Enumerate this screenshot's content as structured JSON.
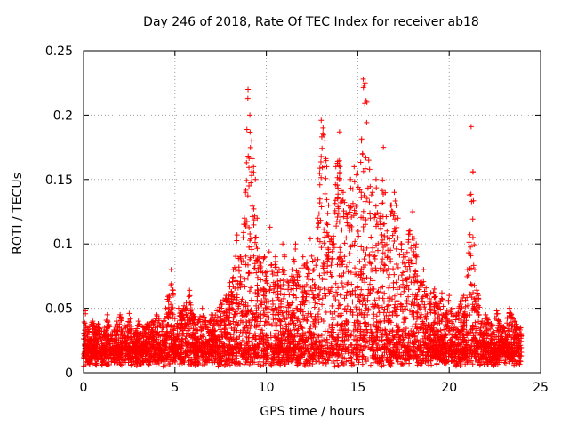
{
  "chart_data": {
    "type": "scatter",
    "title": "Day 246 of 2018, Rate Of TEC Index for receiver ab18",
    "xlabel": "GPS time / hours",
    "ylabel": "ROTI / TECUs",
    "xlim": [
      0,
      25
    ],
    "ylim": [
      0,
      0.25
    ],
    "xticks": [
      "0",
      "5",
      "10",
      "15",
      "20",
      "25"
    ],
    "yticks": [
      "0",
      "0.05",
      "0.1",
      "0.15",
      "0.2",
      "0.25"
    ],
    "grid": true,
    "marker": "+",
    "color": "#ff0000",
    "series": [
      {
        "name": "ROTI",
        "x": [
          0.1,
          0.2,
          0.5,
          0.8,
          1.0,
          1.3,
          1.5,
          1.8,
          2.0,
          2.3,
          2.5,
          2.8,
          3.0,
          3.3,
          3.5,
          3.8,
          4.0,
          4.3,
          4.5,
          4.8,
          4.9,
          5.0,
          5.2,
          5.5,
          5.8,
          6.0,
          6.3,
          6.5,
          6.8,
          7.0,
          7.3,
          7.5,
          7.8,
          8.0,
          8.2,
          8.4,
          8.6,
          8.8,
          9.0,
          9.1,
          9.2,
          9.3,
          9.4,
          9.5,
          9.7,
          9.9,
          10.0,
          10.2,
          10.4,
          10.5,
          10.7,
          10.9,
          11.0,
          11.2,
          11.4,
          11.6,
          11.8,
          12.0,
          12.2,
          12.4,
          12.6,
          12.8,
          13.0,
          13.1,
          13.2,
          13.3,
          13.4,
          13.6,
          13.8,
          14.0,
          14.2,
          14.4,
          14.6,
          14.8,
          15.0,
          15.2,
          15.3,
          15.4,
          15.5,
          15.6,
          15.8,
          16.0,
          16.2,
          16.4,
          16.6,
          16.8,
          17.0,
          17.2,
          17.4,
          17.6,
          17.8,
          18.0,
          18.2,
          18.4,
          18.6,
          18.8,
          19.0,
          19.2,
          19.4,
          19.6,
          19.8,
          20.0,
          20.2,
          20.4,
          20.6,
          20.8,
          21.0,
          21.1,
          21.2,
          21.3,
          21.4,
          21.6,
          21.8,
          22.0,
          22.3,
          22.6,
          23.0,
          23.3,
          23.6,
          23.9
        ],
        "y": [
          0.048,
          0.035,
          0.04,
          0.038,
          0.032,
          0.045,
          0.03,
          0.04,
          0.045,
          0.035,
          0.046,
          0.03,
          0.04,
          0.035,
          0.038,
          0.04,
          0.045,
          0.038,
          0.05,
          0.08,
          0.064,
          0.042,
          0.05,
          0.052,
          0.064,
          0.045,
          0.04,
          0.05,
          0.035,
          0.045,
          0.048,
          0.055,
          0.06,
          0.07,
          0.08,
          0.107,
          0.09,
          0.12,
          0.22,
          0.2,
          0.18,
          0.16,
          0.15,
          0.12,
          0.085,
          0.09,
          0.075,
          0.113,
          0.07,
          0.09,
          0.08,
          0.1,
          0.09,
          0.07,
          0.08,
          0.1,
          0.075,
          0.09,
          0.085,
          0.104,
          0.08,
          0.12,
          0.196,
          0.19,
          0.18,
          0.16,
          0.13,
          0.1,
          0.16,
          0.187,
          0.14,
          0.12,
          0.15,
          0.16,
          0.155,
          0.18,
          0.228,
          0.225,
          0.21,
          0.165,
          0.14,
          0.15,
          0.12,
          0.175,
          0.11,
          0.13,
          0.14,
          0.12,
          0.1,
          0.09,
          0.11,
          0.125,
          0.1,
          0.07,
          0.08,
          0.06,
          0.062,
          0.065,
          0.05,
          0.062,
          0.045,
          0.06,
          0.05,
          0.045,
          0.055,
          0.06,
          0.08,
          0.138,
          0.191,
          0.156,
          0.08,
          0.06,
          0.04,
          0.045,
          0.038,
          0.048,
          0.035,
          0.05,
          0.04,
          0.035
        ]
      }
    ]
  }
}
